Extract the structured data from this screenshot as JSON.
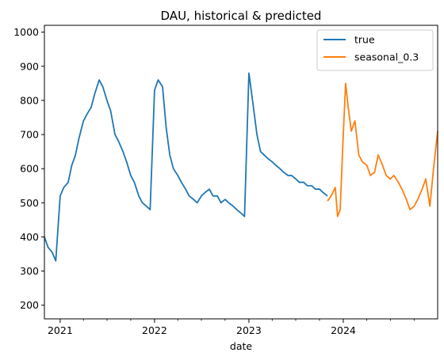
{
  "chart_data": {
    "type": "line",
    "title": "DAU, historical & predicted",
    "xlabel": "date",
    "ylabel": "",
    "xlim": [
      "2020-11-01",
      "2024-12-31"
    ],
    "ylim": [
      160,
      1020
    ],
    "yticks": [
      200,
      300,
      400,
      500,
      600,
      700,
      800,
      900,
      1000
    ],
    "xticks": [
      {
        "label": "2021",
        "date": "2021-01-01"
      },
      {
        "label": "2022",
        "date": "2022-01-01"
      },
      {
        "label": "2023",
        "date": "2023-01-01"
      },
      {
        "label": "2024",
        "date": "2024-01-01"
      }
    ],
    "grid": false,
    "legend": "top-right",
    "series": [
      {
        "name": "true",
        "color": "#1f77b4",
        "x": [
          "2020-11-01",
          "2020-11-15",
          "2020-12-01",
          "2020-12-15",
          "2021-01-01",
          "2021-01-15",
          "2021-02-01",
          "2021-02-15",
          "2021-03-01",
          "2021-03-15",
          "2021-04-01",
          "2021-04-15",
          "2021-05-01",
          "2021-05-15",
          "2021-06-01",
          "2021-06-15",
          "2021-07-01",
          "2021-07-15",
          "2021-08-01",
          "2021-08-15",
          "2021-09-01",
          "2021-09-15",
          "2021-10-01",
          "2021-10-15",
          "2021-11-01",
          "2021-11-15",
          "2021-12-01",
          "2021-12-15",
          "2022-01-01",
          "2022-01-15",
          "2022-02-01",
          "2022-02-15",
          "2022-03-01",
          "2022-03-15",
          "2022-04-01",
          "2022-04-15",
          "2022-05-01",
          "2022-05-15",
          "2022-06-01",
          "2022-06-15",
          "2022-07-01",
          "2022-07-15",
          "2022-08-01",
          "2022-08-15",
          "2022-09-01",
          "2022-09-15",
          "2022-10-01",
          "2022-10-15",
          "2022-11-01",
          "2022-11-15",
          "2022-12-01",
          "2022-12-15",
          "2023-01-01",
          "2023-01-15",
          "2023-02-01",
          "2023-02-15",
          "2023-03-01",
          "2023-03-15",
          "2023-04-01",
          "2023-04-15",
          "2023-05-01",
          "2023-05-15",
          "2023-06-01",
          "2023-06-15",
          "2023-07-01",
          "2023-07-15",
          "2023-08-01",
          "2023-08-15",
          "2023-09-01",
          "2023-09-15",
          "2023-10-01",
          "2023-10-15",
          "2023-11-01"
        ],
        "y": [
          400,
          370,
          355,
          330,
          520,
          545,
          560,
          610,
          640,
          690,
          740,
          760,
          780,
          820,
          860,
          840,
          800,
          770,
          700,
          680,
          650,
          620,
          580,
          560,
          520,
          500,
          490,
          480,
          830,
          860,
          840,
          720,
          640,
          600,
          580,
          560,
          540,
          520,
          510,
          500,
          520,
          530,
          540,
          520,
          520,
          500,
          510,
          500,
          490,
          480,
          470,
          460,
          880,
          800,
          700,
          650,
          640,
          630,
          620,
          610,
          600,
          590,
          580,
          580,
          570,
          560,
          560,
          550,
          550,
          540,
          540,
          530,
          520
        ]
      },
      {
        "name": "seasonal_0.3",
        "color": "#ff7f0e",
        "x": [
          "2023-11-01",
          "2023-11-15",
          "2023-12-01",
          "2023-12-10",
          "2023-12-20",
          "2024-01-01",
          "2024-01-10",
          "2024-01-20",
          "2024-02-01",
          "2024-02-15",
          "2024-03-01",
          "2024-03-15",
          "2024-04-01",
          "2024-04-15",
          "2024-05-01",
          "2024-05-15",
          "2024-06-01",
          "2024-06-15",
          "2024-07-01",
          "2024-07-15",
          "2024-08-01",
          "2024-08-15",
          "2024-09-01",
          "2024-09-15",
          "2024-10-01",
          "2024-10-15",
          "2024-11-01",
          "2024-11-15",
          "2024-12-01",
          "2024-12-15",
          "2024-12-31"
        ],
        "y": [
          505,
          520,
          545,
          460,
          480,
          700,
          850,
          780,
          710,
          740,
          640,
          620,
          610,
          580,
          590,
          640,
          610,
          580,
          570,
          580,
          560,
          540,
          510,
          480,
          490,
          510,
          540,
          570,
          490,
          600,
          710
        ]
      }
    ]
  }
}
